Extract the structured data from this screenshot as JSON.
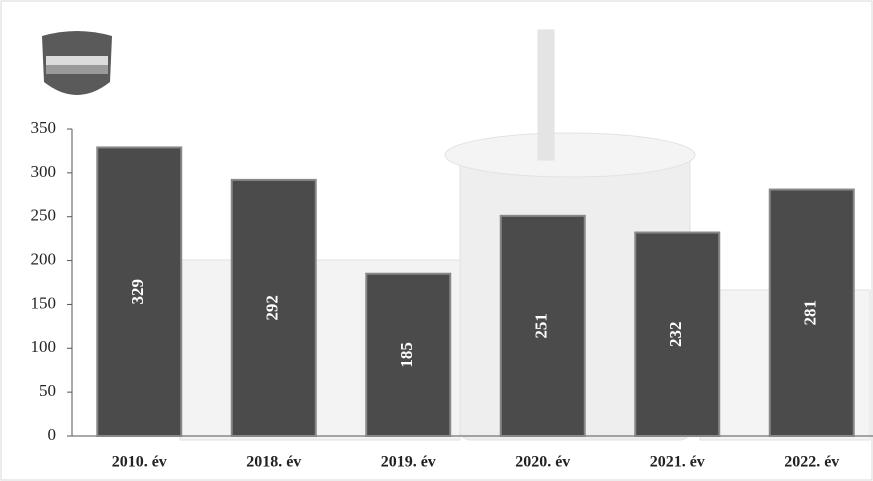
{
  "chart_data": {
    "type": "bar",
    "categories": [
      "2010. év",
      "2018. év",
      "2019. év",
      "2020. év",
      "2021. év",
      "2022. év"
    ],
    "values": [
      329,
      292,
      185,
      251,
      232,
      281
    ],
    "color": "#4b4b4b",
    "ylim": [
      0,
      350
    ],
    "yticks": [
      0,
      50,
      100,
      150,
      200,
      250,
      300,
      350
    ],
    "grid": false
  }
}
